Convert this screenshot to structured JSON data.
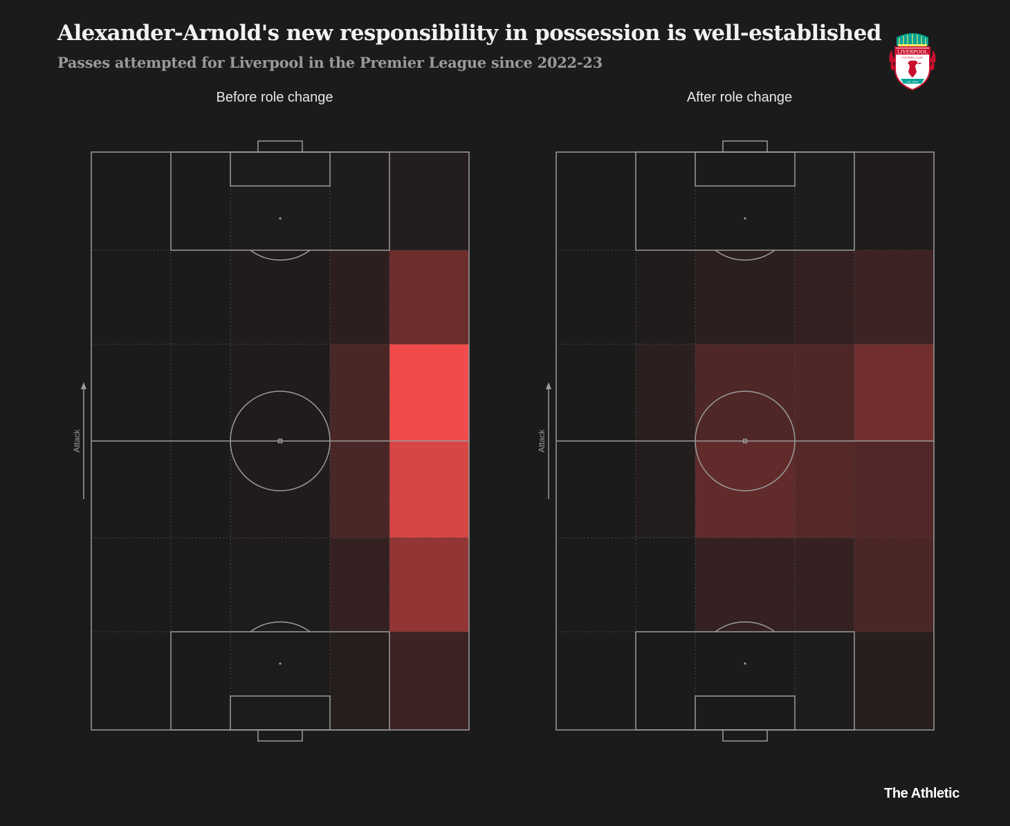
{
  "title": "Alexander-Arnold's new responsibility in possession is well-established",
  "subtitle": "Passes attempted for Liverpool in the Premier League since 2022-23",
  "brand": "The Athletic",
  "crest": {
    "icon": "liverpool-fc-crest",
    "text": [
      "LIVERPOOL",
      "FOOTBALL CLUB",
      "EST 1892"
    ],
    "colors": {
      "red": "#c8102e",
      "green": "#00a398",
      "gold": "#f6eb61"
    }
  },
  "colors": {
    "background": "#1b1b1b",
    "pitch_lines": "#9c9c9c",
    "heat_low": "#1b1b1b",
    "heat_high": "#f24b4b"
  },
  "chart_data": [
    {
      "type": "heatmap",
      "title": "Before role change",
      "direction_label": "Attack",
      "orientation": "vertical pitch, attack towards top",
      "rows": 6,
      "columns": 5,
      "note": "relative pass intensity per zone (0-1), rows top (attacking end) to bottom",
      "values": [
        [
          0.0,
          0.0,
          0.02,
          0.02,
          0.04
        ],
        [
          0.0,
          0.0,
          0.03,
          0.09,
          0.38
        ],
        [
          0.0,
          0.0,
          0.03,
          0.22,
          1.0
        ],
        [
          0.0,
          0.0,
          0.03,
          0.22,
          0.88
        ],
        [
          0.0,
          0.0,
          0.02,
          0.12,
          0.55
        ],
        [
          0.0,
          0.0,
          0.01,
          0.05,
          0.16
        ]
      ]
    },
    {
      "type": "heatmap",
      "title": "After role change",
      "direction_label": "Attack",
      "orientation": "vertical pitch, attack towards top",
      "rows": 6,
      "columns": 5,
      "note": "relative pass intensity per zone (0-1), rows top (attacking end) to bottom",
      "values": [
        [
          0.0,
          0.0,
          0.0,
          0.02,
          0.03
        ],
        [
          0.0,
          0.03,
          0.08,
          0.11,
          0.16
        ],
        [
          0.0,
          0.08,
          0.24,
          0.24,
          0.41
        ],
        [
          0.0,
          0.04,
          0.33,
          0.28,
          0.26
        ],
        [
          0.0,
          0.0,
          0.12,
          0.12,
          0.22
        ],
        [
          0.0,
          0.0,
          0.0,
          0.02,
          0.06
        ]
      ]
    }
  ]
}
